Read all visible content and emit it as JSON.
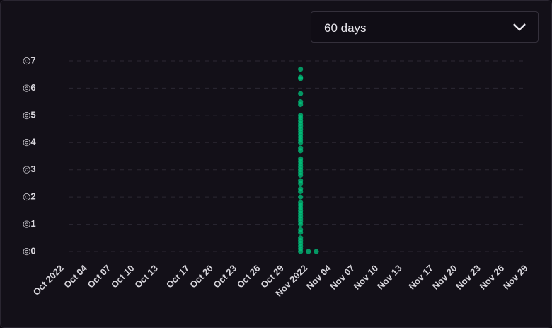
{
  "controls": {
    "range": "60 days"
  },
  "chart_data": {
    "type": "scatter",
    "color": "#00c47c",
    "grid": true,
    "ylim": [
      0,
      7
    ],
    "yticks": [
      {
        "value": 0,
        "label": "◎0"
      },
      {
        "value": 1,
        "label": "◎1"
      },
      {
        "value": 2,
        "label": "◎2"
      },
      {
        "value": 3,
        "label": "◎3"
      },
      {
        "value": 4,
        "label": "◎4"
      },
      {
        "value": 5,
        "label": "◎5"
      },
      {
        "value": 6,
        "label": "◎6"
      },
      {
        "value": 7,
        "label": "◎7"
      }
    ],
    "xlim": [
      "2022-10-01",
      "2022-11-29"
    ],
    "xticks": [
      {
        "value": "2022-10-01",
        "label": "Oct 2022"
      },
      {
        "value": "2022-10-04",
        "label": "Oct 04"
      },
      {
        "value": "2022-10-07",
        "label": "Oct 07"
      },
      {
        "value": "2022-10-10",
        "label": "Oct 10"
      },
      {
        "value": "2022-10-13",
        "label": "Oct 13"
      },
      {
        "value": "2022-10-17",
        "label": "Oct 17"
      },
      {
        "value": "2022-10-20",
        "label": "Oct 20"
      },
      {
        "value": "2022-10-23",
        "label": "Oct 23"
      },
      {
        "value": "2022-10-26",
        "label": "Oct 26"
      },
      {
        "value": "2022-10-29",
        "label": "Oct 29"
      },
      {
        "value": "2022-11-01",
        "label": "Nov 2022"
      },
      {
        "value": "2022-11-04",
        "label": "Nov 04"
      },
      {
        "value": "2022-11-07",
        "label": "Nov 07"
      },
      {
        "value": "2022-11-10",
        "label": "Nov 10"
      },
      {
        "value": "2022-11-13",
        "label": "Nov 13"
      },
      {
        "value": "2022-11-17",
        "label": "Nov 17"
      },
      {
        "value": "2022-11-20",
        "label": "Nov 20"
      },
      {
        "value": "2022-11-23",
        "label": "Nov 23"
      },
      {
        "value": "2022-11-26",
        "label": "Nov 26"
      },
      {
        "value": "2022-11-29",
        "label": "Nov 29"
      }
    ],
    "x": [
      "2022-11-01",
      "2022-11-01",
      "2022-11-01",
      "2022-11-01",
      "2022-11-01",
      "2022-11-01",
      "2022-11-01",
      "2022-11-01",
      "2022-11-01",
      "2022-11-01",
      "2022-11-01",
      "2022-11-01",
      "2022-11-01",
      "2022-11-01",
      "2022-11-01",
      "2022-11-01",
      "2022-11-01",
      "2022-11-01",
      "2022-11-01",
      "2022-11-01",
      "2022-11-01",
      "2022-11-01",
      "2022-11-01",
      "2022-11-01",
      "2022-11-01",
      "2022-11-01",
      "2022-11-01",
      "2022-11-01",
      "2022-11-01",
      "2022-11-01",
      "2022-11-01",
      "2022-11-01",
      "2022-11-01",
      "2022-11-01",
      "2022-11-01",
      "2022-11-01",
      "2022-11-01",
      "2022-11-01",
      "2022-11-01",
      "2022-11-01",
      "2022-11-01",
      "2022-11-01",
      "2022-11-01",
      "2022-11-01",
      "2022-11-01",
      "2022-11-01",
      "2022-11-01",
      "2022-11-01",
      "2022-11-02",
      "2022-11-03"
    ],
    "values": [
      6.7,
      6.4,
      6.35,
      5.8,
      5.5,
      5.4,
      5.0,
      4.9,
      4.8,
      4.7,
      4.6,
      4.5,
      4.4,
      4.3,
      4.2,
      4.1,
      4.0,
      3.8,
      3.7,
      3.4,
      3.3,
      3.2,
      3.1,
      3.0,
      2.9,
      2.8,
      2.6,
      2.5,
      2.3,
      2.2,
      2.0,
      1.8,
      1.7,
      1.6,
      1.5,
      1.4,
      1.3,
      1.2,
      1.1,
      1.0,
      0.8,
      0.7,
      0.5,
      0.4,
      0.3,
      0.2,
      0.1,
      0,
      0,
      0
    ]
  }
}
